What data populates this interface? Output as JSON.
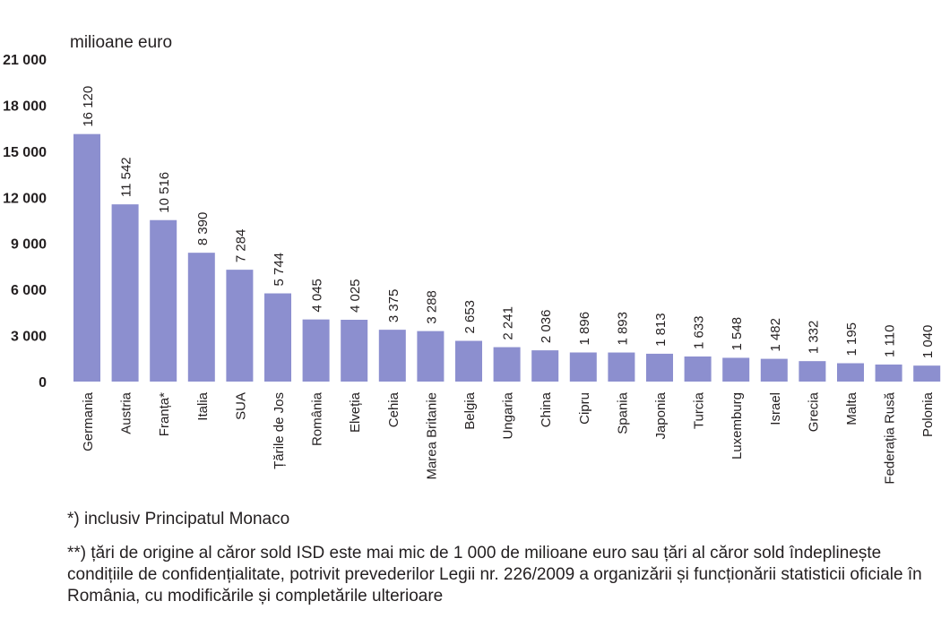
{
  "chart_data": {
    "type": "bar",
    "unit_label": "milioane euro",
    "categories": [
      "Germania",
      "Austria",
      "Franța*",
      "Italia",
      "SUA",
      "Țările de Jos",
      "România",
      "Elveția",
      "Cehia",
      "Marea Britanie",
      "Belgia",
      "Ungaria",
      "China",
      "Cipru",
      "Spania",
      "Japonia",
      "Turcia",
      "Luxemburg",
      "Israel",
      "Grecia",
      "Malta",
      "Federația Rusă",
      "Polonia"
    ],
    "values": [
      16120,
      11542,
      10516,
      8390,
      7284,
      5744,
      4045,
      4025,
      3375,
      3288,
      2653,
      2241,
      2036,
      1896,
      1893,
      1813,
      1633,
      1548,
      1482,
      1332,
      1195,
      1110,
      1040
    ],
    "value_labels": [
      "16 120",
      "11 542",
      "10 516",
      "8 390",
      "7 284",
      "5 744",
      "4 045",
      "4 025",
      "3 375",
      "3 288",
      "2 653",
      "2 241",
      "2 036",
      "1 896",
      "1 893",
      "1 813",
      "1 633",
      "1 548",
      "1 482",
      "1 332",
      "1 195",
      "1 110",
      "1 040"
    ],
    "yticks": [
      0,
      3000,
      6000,
      9000,
      12000,
      15000,
      18000,
      21000
    ],
    "ytick_labels": [
      "0",
      "3 000",
      "6 000",
      "9 000",
      "12 000",
      "15 000",
      "18 000",
      "21 000"
    ],
    "ylim": [
      0,
      21000
    ],
    "bar_color": "#8c8fcf",
    "grid": false
  },
  "notes": {
    "note1": "*) inclusiv Principatul Monaco",
    "note2": "**) țări de origine al căror sold ISD este mai mic de 1 000 de milioane euro sau țări al căror sold îndeplinește condițiile de confidențialitate, potrivit prevederilor Legii nr. 226/2009 a organizării și funcționării statisticii oficiale în România, cu modificările și completările ulterioare"
  }
}
